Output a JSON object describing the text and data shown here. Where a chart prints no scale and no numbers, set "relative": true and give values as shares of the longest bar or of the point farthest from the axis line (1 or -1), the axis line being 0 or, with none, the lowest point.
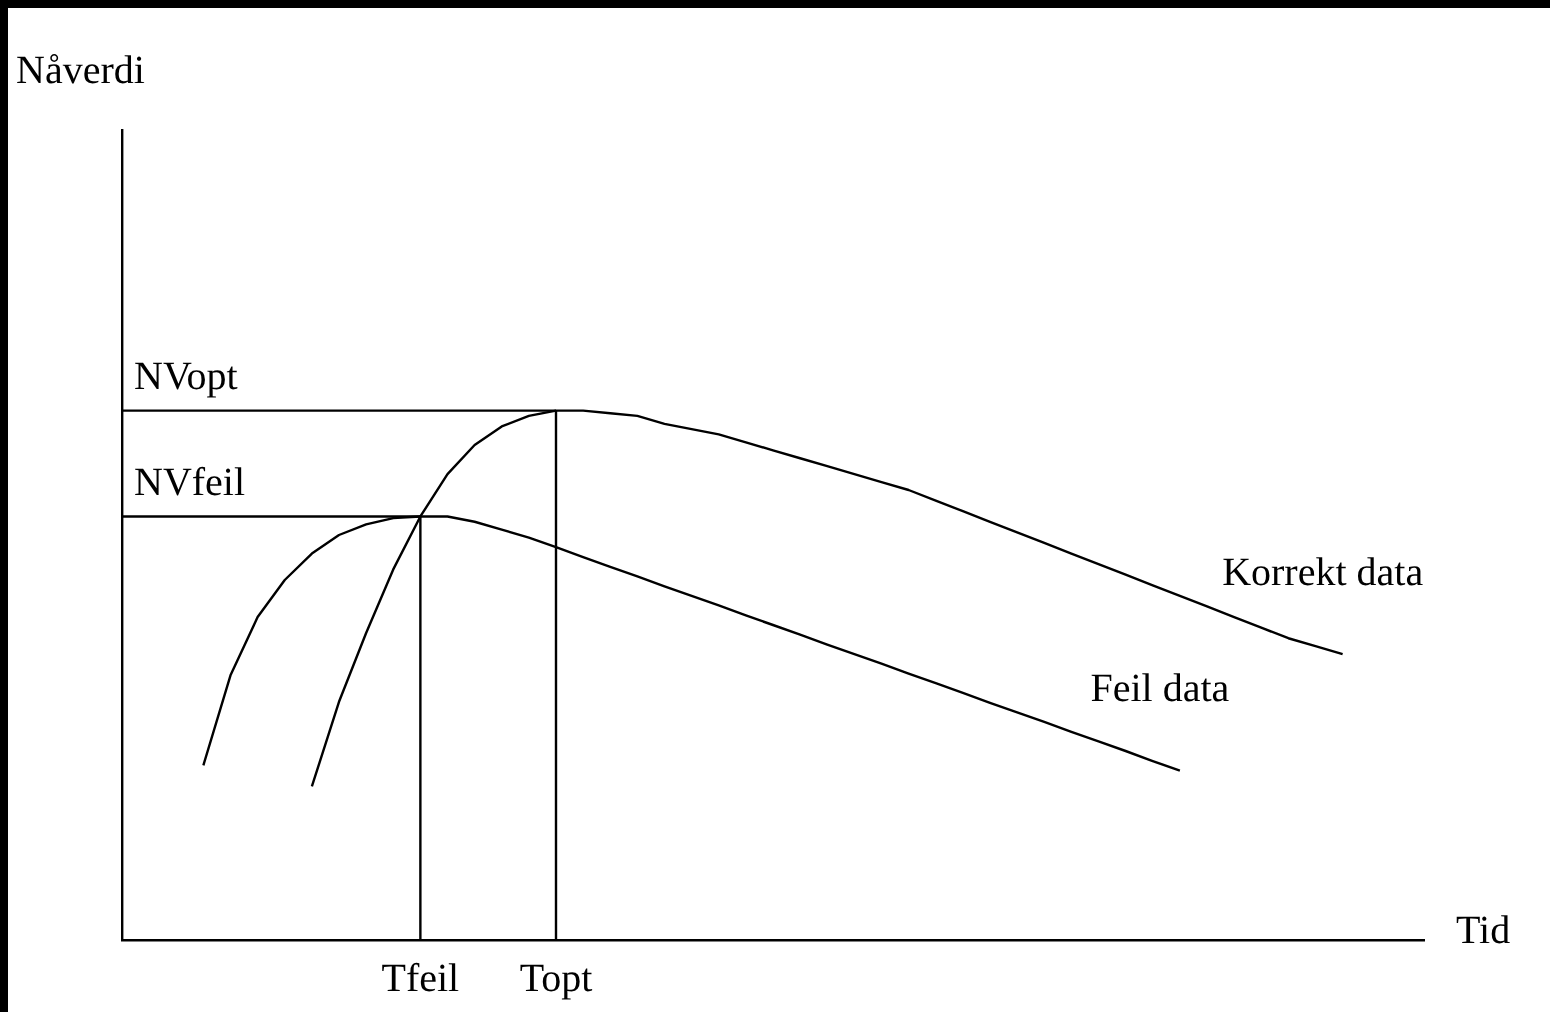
{
  "chart_data": {
    "type": "line",
    "relative": true,
    "xlabel": "Tid",
    "annotations": [
      "Nåverdi"
    ],
    "tick_labels": "x",
    "grid": false,
    "legend": false,
    "marker": "none",
    "line_style": "solid",
    "categories": [
      null,
      null,
      null,
      null,
      null,
      null,
      null,
      null,
      null,
      null,
      null,
      "Tfeil",
      null,
      null,
      null,
      null,
      "Topt",
      null,
      null,
      null,
      null,
      null,
      null,
      null,
      null,
      null,
      null,
      null,
      null,
      null,
      null,
      null,
      null,
      null,
      null,
      null,
      null,
      null,
      null,
      null,
      null,
      null,
      null,
      null,
      null,
      null,
      null,
      null,
      null
    ],
    "series": [
      {
        "name": "Korrekt data",
        "color": "#000000",
        "values": [
          null,
          null,
          null,
          null,
          null,
          null,
          null,
          0.29,
          0.45,
          0.58,
          0.7,
          0.8,
          0.88,
          0.935,
          0.97,
          0.99,
          1,
          1,
          0.995,
          0.99,
          0.975,
          0.965,
          0.955,
          0.94,
          0.925,
          0.91,
          0.895,
          0.88,
          0.865,
          0.85,
          0.83,
          0.81,
          0.79,
          0.77,
          0.75,
          0.73,
          0.71,
          0.69,
          0.67,
          0.65,
          0.63,
          0.61,
          0.59,
          0.57,
          0.555,
          0.54,
          null,
          null,
          null
        ]
      },
      {
        "name": "Feil data",
        "color": "#000000",
        "values": [
          null,
          null,
          null,
          0.33,
          0.5,
          0.61,
          0.68,
          0.73,
          0.765,
          0.785,
          0.797,
          0.8,
          0.8,
          0.79,
          0.775,
          0.76,
          0.742,
          0.723,
          0.705,
          0.687,
          0.668,
          0.65,
          0.632,
          0.613,
          0.595,
          0.577,
          0.558,
          0.54,
          0.522,
          0.503,
          0.485,
          0.467,
          0.448,
          0.43,
          0.412,
          0.393,
          0.375,
          0.357,
          0.338,
          0.32,
          null,
          null,
          null,
          null,
          null,
          null,
          null,
          null,
          null
        ]
      }
    ],
    "ref_lines": [
      {
        "axis": "y",
        "value": 1,
        "label": "NVopt"
      },
      {
        "axis": "y",
        "value": 0.8,
        "label": "NVfeil"
      },
      {
        "axis": "x",
        "value": "Tfeil"
      },
      {
        "axis": "x",
        "value": "Topt"
      }
    ]
  }
}
